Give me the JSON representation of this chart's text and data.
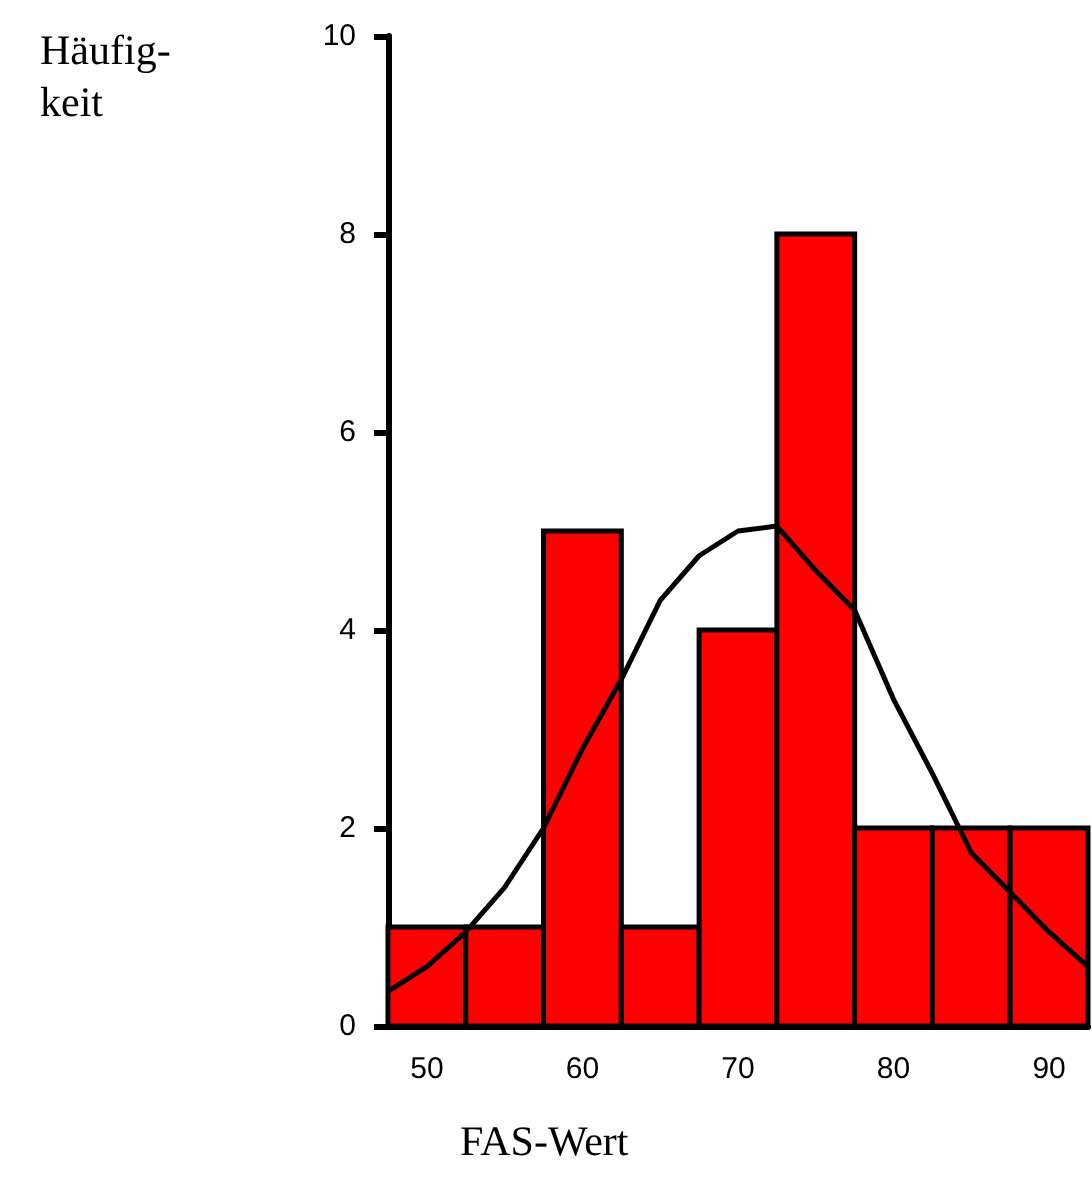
{
  "chart_data": {
    "type": "histogram",
    "xlabel": "FAS-Wert",
    "ylabel": "Häufig-\nkeit",
    "bins": [
      47.5,
      52.5,
      57.5,
      62.5,
      67.5,
      72.5,
      77.5,
      82.5,
      87.5,
      92.5
    ],
    "values": [
      1,
      1,
      5,
      1,
      4,
      8,
      2,
      2,
      2
    ],
    "color": "#ff0000",
    "series": [
      {
        "type": "line",
        "color": "#000000",
        "x": [
          47.5,
          50,
          52.5,
          55,
          57.5,
          60,
          62.5,
          65,
          67.5,
          70,
          72.5,
          75,
          77.5,
          80,
          82.5,
          85,
          87.5,
          90,
          92.5
        ],
        "values": [
          0.35,
          0.6,
          0.95,
          1.4,
          2.0,
          2.8,
          3.5,
          4.3,
          4.75,
          5.0,
          5.05,
          4.6,
          4.2,
          3.3,
          2.55,
          1.75,
          1.35,
          0.95,
          0.6
        ]
      }
    ],
    "xlim": [
      47.5,
      92.5
    ],
    "xticks": [
      50,
      60,
      70,
      80,
      90
    ],
    "ylim": [
      0,
      10
    ],
    "yticks": [
      0,
      2,
      4,
      6,
      8,
      10
    ],
    "grid": false
  }
}
